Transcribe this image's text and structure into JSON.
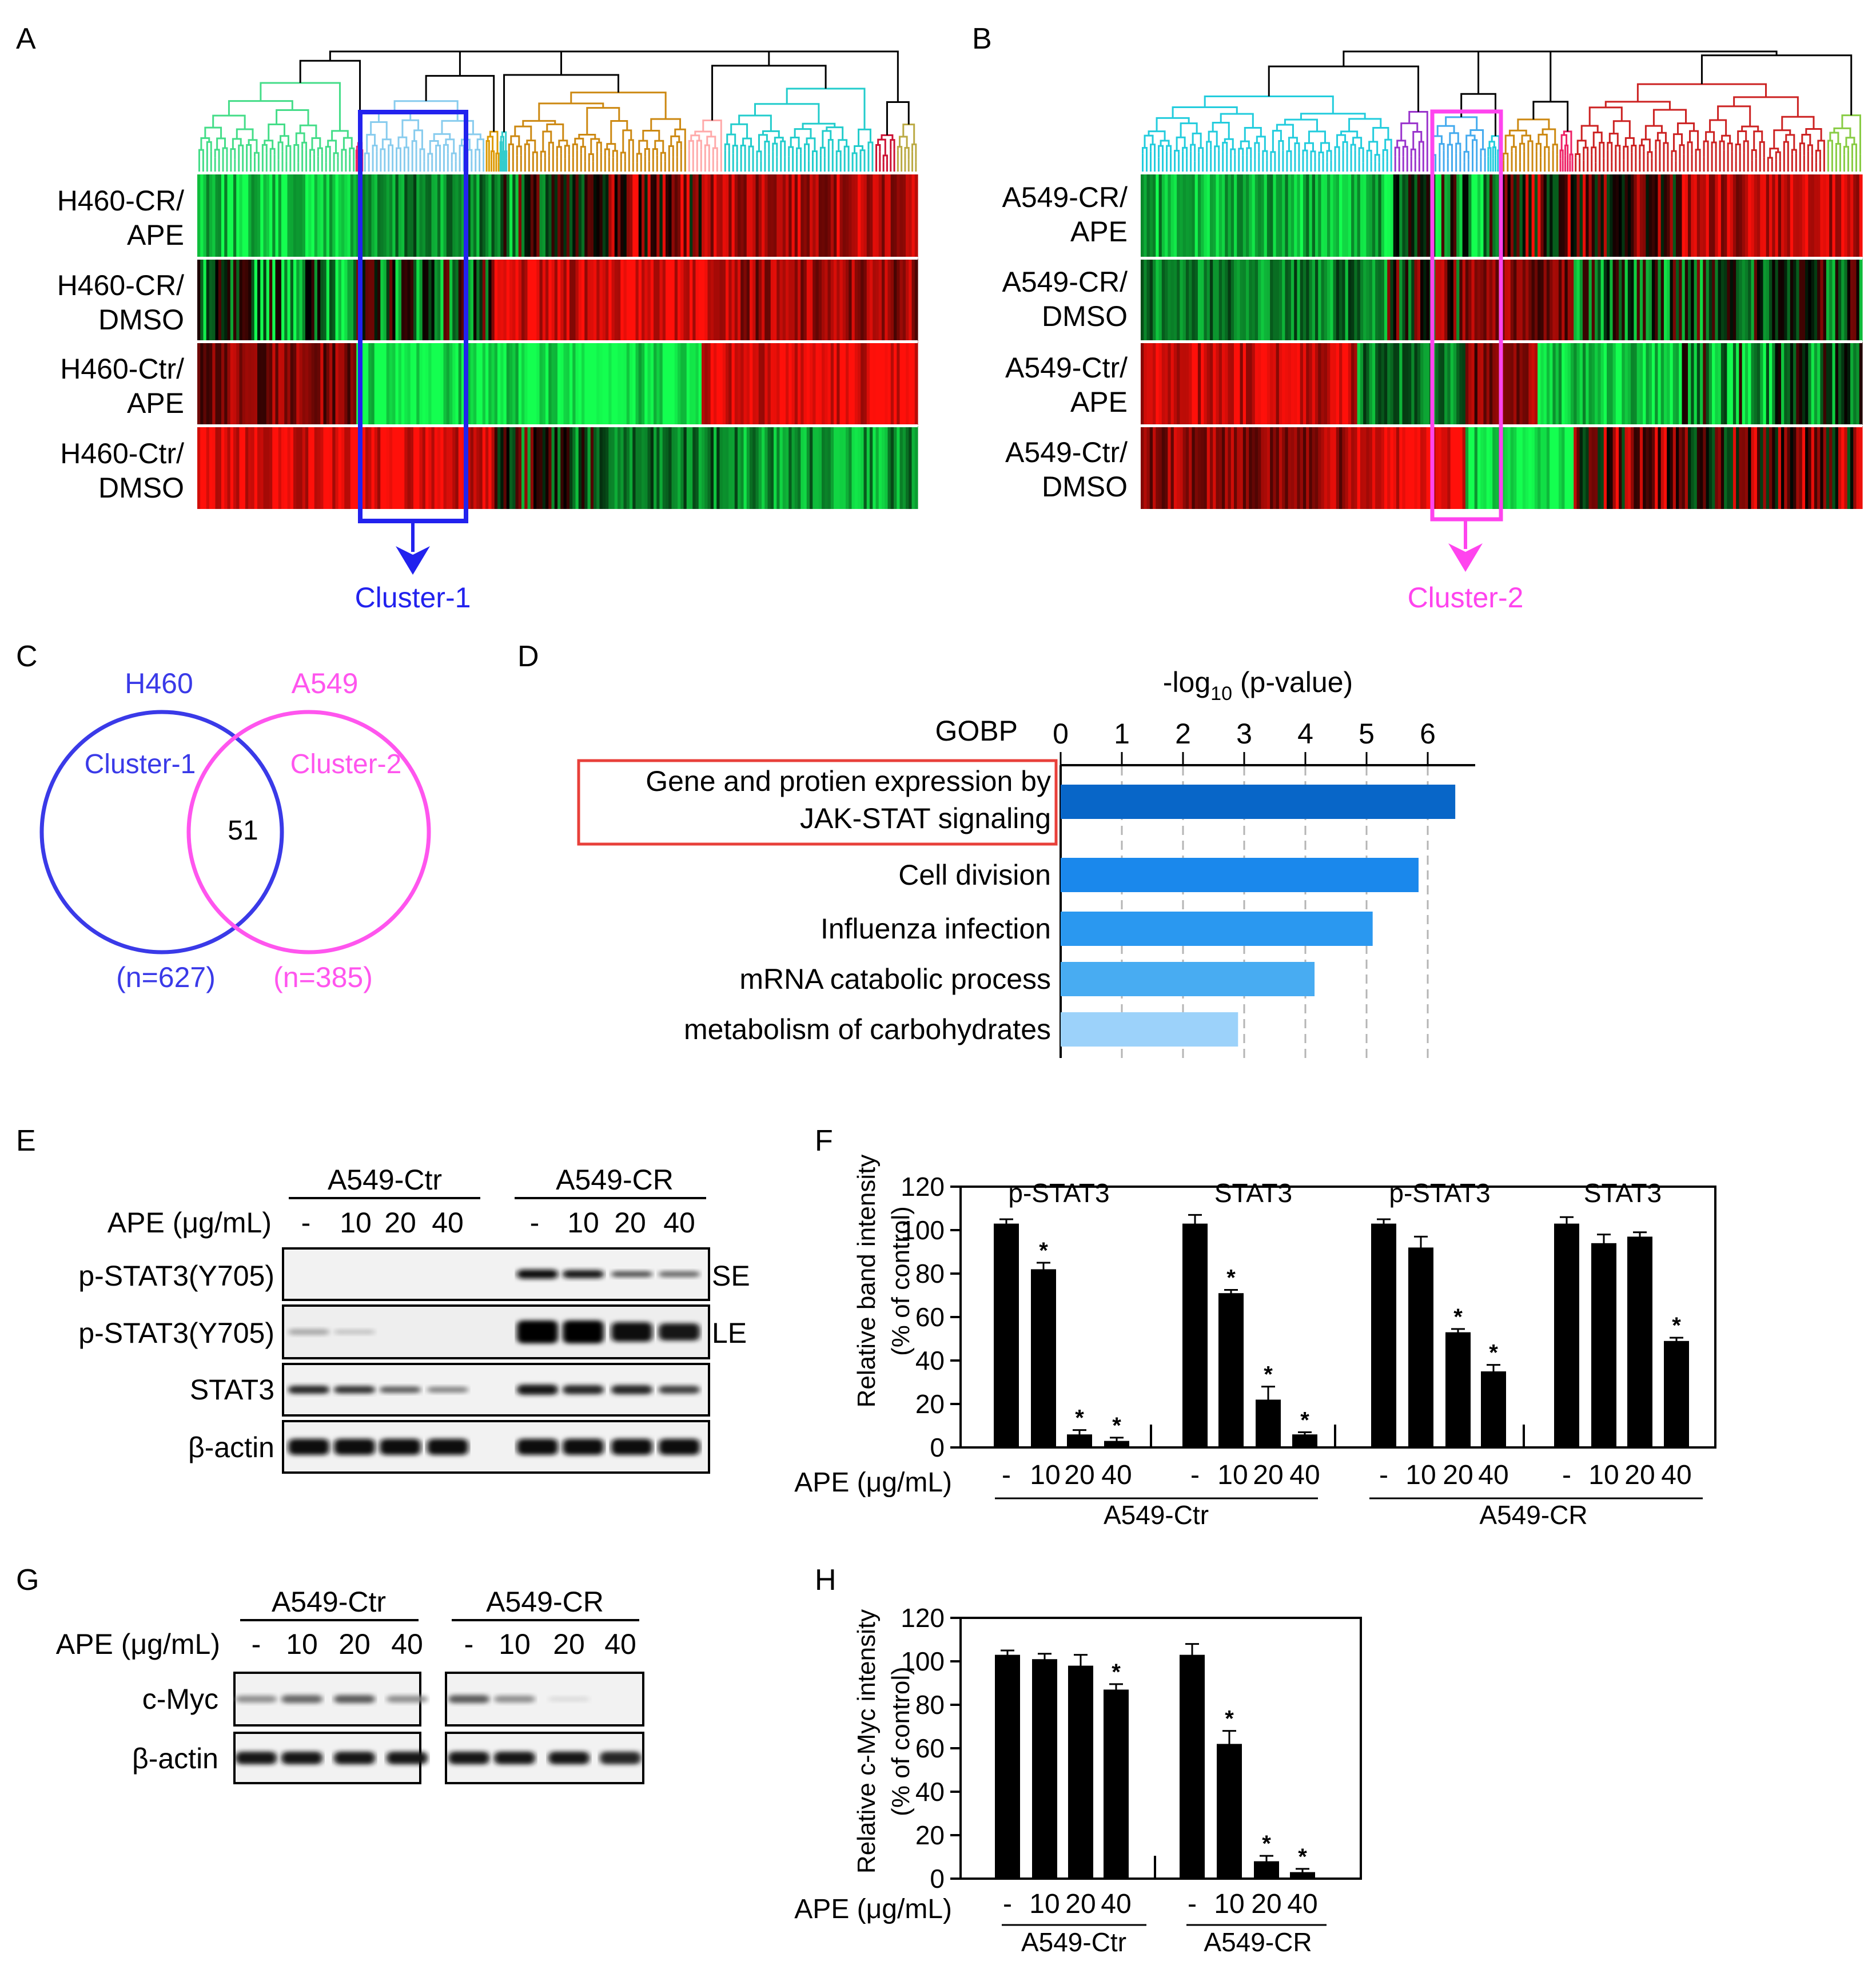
{
  "colors": {
    "blue": "#2222ee",
    "magenta": "#ff44ee",
    "red_box": "#e8403a",
    "heat_red": "#ff1a10",
    "heat_green": "#19ff5a",
    "bar_dark": "#000000"
  },
  "panelA": {
    "letter": "A",
    "rows": [
      [
        "H460-CR/",
        "APE"
      ],
      [
        "H460-CR/",
        "DMSO"
      ],
      [
        "H460-Ctr/",
        "APE"
      ],
      [
        "H460-Ctr/",
        "DMSO"
      ]
    ],
    "cluster_label": "Cluster-1"
  },
  "panelB": {
    "letter": "B",
    "rows": [
      [
        "A549-CR/",
        "APE"
      ],
      [
        "A549-CR/",
        "DMSO"
      ],
      [
        "A549-Ctr/",
        "APE"
      ],
      [
        "A549-Ctr/",
        "DMSO"
      ]
    ],
    "cluster_label": "Cluster-2"
  },
  "panelC": {
    "letter": "C",
    "left_title": "H460",
    "right_title": "A549",
    "left_cluster": "Cluster-1",
    "right_cluster": "Cluster-2",
    "overlap": "51",
    "left_n": "(n=627)",
    "right_n": "(n=385)"
  },
  "panelD": {
    "letter": "D",
    "gobp_label": "GOBP",
    "axis_title_prefix": "-log",
    "axis_title_sub": "10",
    "axis_title_suffix": " (p-value)",
    "ticks": [
      "0",
      "1",
      "2",
      "3",
      "4",
      "5",
      "6"
    ]
  },
  "panelE": {
    "letter": "E",
    "group_ctr": "A549-Ctr",
    "group_cr": "A549-CR",
    "ape_label": "APE (μg/mL)",
    "doses": [
      "-",
      "10",
      "20",
      "40"
    ],
    "blot_rows": [
      "p-STAT3(Y705)",
      "p-STAT3(Y705)",
      "STAT3",
      "β-actin"
    ],
    "exposure_labels": [
      "SE",
      "LE"
    ]
  },
  "panelF": {
    "letter": "F",
    "ylabel_line1": "Relative band intensity",
    "ylabel_line2": "(% of control)",
    "section_labels": [
      "p-STAT3",
      "STAT3",
      "p-STAT3",
      "STAT3"
    ],
    "ape_label": "APE (μg/mL)",
    "doses": [
      "-",
      "10",
      "20",
      "40"
    ],
    "group_labels": [
      "A549-Ctr",
      "A549-CR"
    ],
    "star": "*"
  },
  "panelG": {
    "letter": "G",
    "group_ctr": "A549-Ctr",
    "group_cr": "A549-CR",
    "ape_label": "APE (μg/mL)",
    "doses": [
      "-",
      "10",
      "20",
      "40"
    ],
    "blot_rows": [
      "c-Myc",
      "β-actin"
    ]
  },
  "panelH": {
    "letter": "H",
    "ylabel_line1": "Relative c-Myc intensity",
    "ylabel_line2": "(% of control)",
    "ape_label": "APE (μg/mL)",
    "doses": [
      "-",
      "10",
      "20",
      "40"
    ],
    "group_labels": [
      "A549-Ctr",
      "A549-CR"
    ],
    "star": "*"
  },
  "chart_data": [
    {
      "id": "D",
      "type": "bar",
      "orientation": "horizontal",
      "title": "-log10 (p-value)",
      "ylabel": "GOBP",
      "categories": [
        "Gene and protien expression by JAK-STAT signaling",
        "Cell division",
        "Influenza infection",
        "mRNA catabolic process",
        "metabolism of carbohydrates"
      ],
      "highlighted_category": "Gene and protien expression by JAK-STAT signaling",
      "values": [
        6.45,
        5.85,
        5.1,
        4.15,
        2.9
      ],
      "bar_colors": [
        "#0866c8",
        "#1a88ec",
        "#2a98f0",
        "#48acf2",
        "#9cd2fa"
      ],
      "xlim": [
        0,
        6.7
      ],
      "xticks": [
        0,
        1,
        2,
        3,
        4,
        5,
        6
      ],
      "grid": "dashed-vertical"
    },
    {
      "id": "F",
      "type": "bar",
      "ylabel": "Relative band intensity (% of control)",
      "ylim": [
        0,
        120
      ],
      "yticks": [
        0,
        20,
        40,
        60,
        80,
        100,
        120
      ],
      "xlabel": "APE (μg/mL)",
      "series": [
        {
          "name": "p-STAT3",
          "group": "A549-Ctr",
          "categories": [
            "-",
            "10",
            "20",
            "40"
          ],
          "values": [
            103,
            82,
            6,
            3
          ],
          "errors": [
            2,
            3,
            2,
            1.5
          ],
          "significant": [
            false,
            true,
            true,
            true
          ]
        },
        {
          "name": "STAT3",
          "group": "A549-Ctr",
          "categories": [
            "-",
            "10",
            "20",
            "40"
          ],
          "values": [
            103,
            71,
            22,
            6
          ],
          "errors": [
            4,
            1.5,
            6,
            1
          ],
          "significant": [
            false,
            true,
            true,
            true
          ]
        },
        {
          "name": "p-STAT3",
          "group": "A549-CR",
          "categories": [
            "-",
            "10",
            "20",
            "40"
          ],
          "values": [
            103,
            92,
            53,
            35
          ],
          "errors": [
            2,
            5,
            1.5,
            3
          ],
          "significant": [
            false,
            false,
            true,
            true
          ]
        },
        {
          "name": "STAT3",
          "group": "A549-CR",
          "categories": [
            "-",
            "10",
            "20",
            "40"
          ],
          "values": [
            103,
            94,
            97,
            49
          ],
          "errors": [
            3,
            4,
            2,
            1.5
          ],
          "significant": [
            false,
            false,
            false,
            true
          ]
        }
      ]
    },
    {
      "id": "H",
      "type": "bar",
      "ylabel": "Relative c-Myc intensity (% of control)",
      "ylim": [
        0,
        120
      ],
      "yticks": [
        0,
        20,
        40,
        60,
        80,
        100,
        120
      ],
      "xlabel": "APE (μg/mL)",
      "series": [
        {
          "name": "c-Myc",
          "group": "A549-Ctr",
          "categories": [
            "-",
            "10",
            "20",
            "40"
          ],
          "values": [
            103,
            101,
            98,
            87
          ],
          "errors": [
            2,
            2.5,
            5,
            2.5
          ],
          "significant": [
            false,
            false,
            false,
            true
          ]
        },
        {
          "name": "c-Myc",
          "group": "A549-CR",
          "categories": [
            "-",
            "10",
            "20",
            "40"
          ],
          "values": [
            103,
            62,
            8,
            3
          ],
          "errors": [
            5,
            6,
            2.5,
            1.5
          ],
          "significant": [
            false,
            true,
            true,
            true
          ]
        }
      ]
    }
  ]
}
